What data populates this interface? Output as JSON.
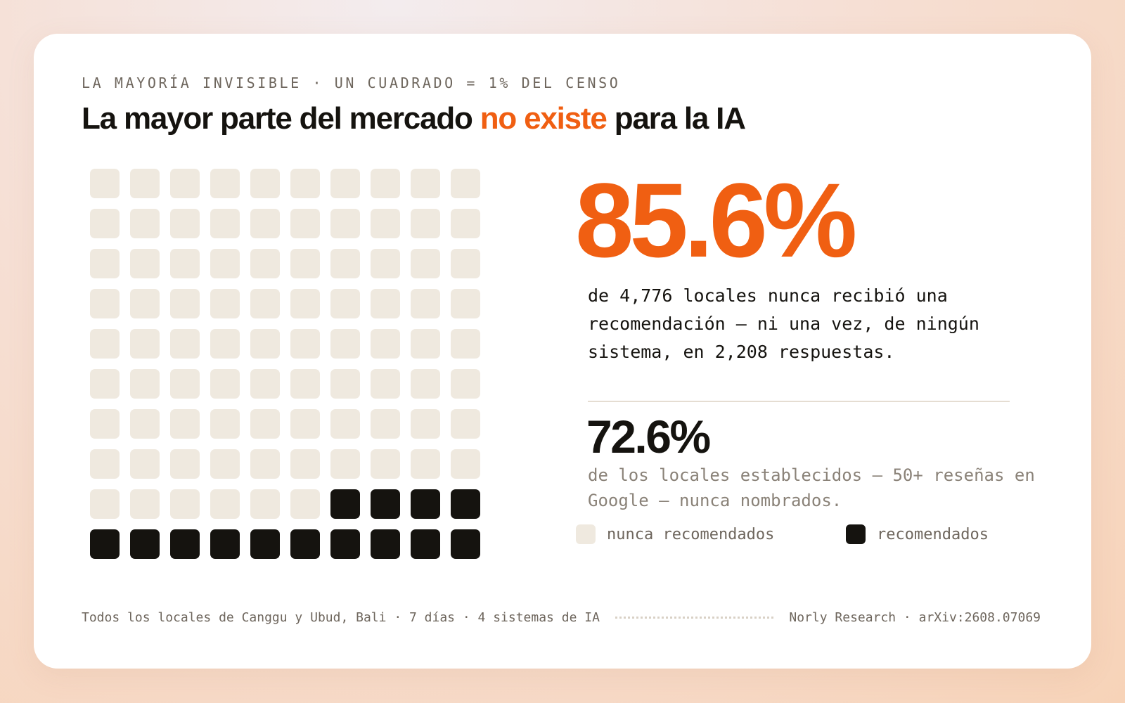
{
  "eyebrow": "LA MAYORÍA INVISIBLE · UN CUADRADO = 1% DEL CENSO",
  "headline": {
    "before": "La mayor parte del mercado ",
    "accent": "no existe",
    "after": " para la IA"
  },
  "stats": {
    "main_value": "85.6%",
    "main_description": "de 4,776 locales nunca recibió una recomendación — ni una vez, de ningún sistema, en 2,208 respuestas.",
    "secondary_value": "72.6%",
    "secondary_description": "de los locales establecidos — 50+ reseñas en Google — nunca nombrados."
  },
  "legend": {
    "never_label": "nunca recomendados",
    "recommended_label": "recomendados"
  },
  "footer": {
    "left": "Todos los locales de Canggu y Ubud, Bali · 7 días · 4 sistemas de IA",
    "right": "Norly Research · arXiv:2608.07069"
  },
  "colors": {
    "accent": "#f05f12",
    "never": "#efe9df",
    "recommended": "#15130f"
  },
  "chart_data": {
    "type": "waffle",
    "rows": 10,
    "columns": 10,
    "unit": "1% del censo",
    "series": [
      {
        "name": "nunca recomendados",
        "value": 86
      },
      {
        "name": "recomendados",
        "value": 14
      }
    ]
  }
}
